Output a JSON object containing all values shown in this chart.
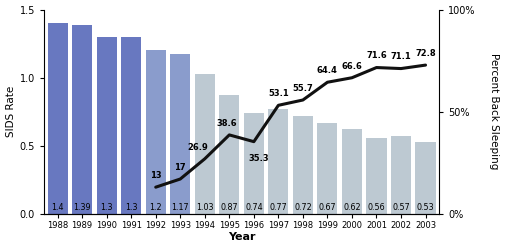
{
  "years": [
    1988,
    1989,
    1990,
    1991,
    1992,
    1993,
    1994,
    1995,
    1996,
    1997,
    1998,
    1999,
    2000,
    2001,
    2002,
    2003
  ],
  "sids_rate": [
    1.4,
    1.39,
    1.3,
    1.3,
    1.2,
    1.17,
    1.03,
    0.87,
    0.74,
    0.77,
    0.72,
    0.67,
    0.62,
    0.56,
    0.57,
    0.53
  ],
  "back_sleeping": [
    null,
    null,
    null,
    null,
    13,
    17,
    26.9,
    38.6,
    35.3,
    53.1,
    55.7,
    64.4,
    66.6,
    71.6,
    71.1,
    72.8
  ],
  "bar_color_dark": "#6878C0",
  "bar_color_med": "#8A9CCC",
  "bar_color_light": "#BDC9D2",
  "sids_ylabel": "SIDS Rate",
  "back_ylabel": "Percent Back Sleeping",
  "xlabel": "Year",
  "ylim_left": [
    0,
    1.5
  ],
  "ylim_right": [
    0,
    100
  ],
  "line_color": "#111111",
  "back_label_offsets_x": [
    0,
    0,
    -0.3,
    -0.1,
    0.2,
    0,
    0,
    0,
    0,
    0,
    0,
    0
  ],
  "back_label_offsets_y": [
    3.5,
    3.5,
    3.5,
    3.5,
    -6,
    3.5,
    3.5,
    3.5,
    3.5,
    3.5,
    3.5,
    3.5
  ]
}
